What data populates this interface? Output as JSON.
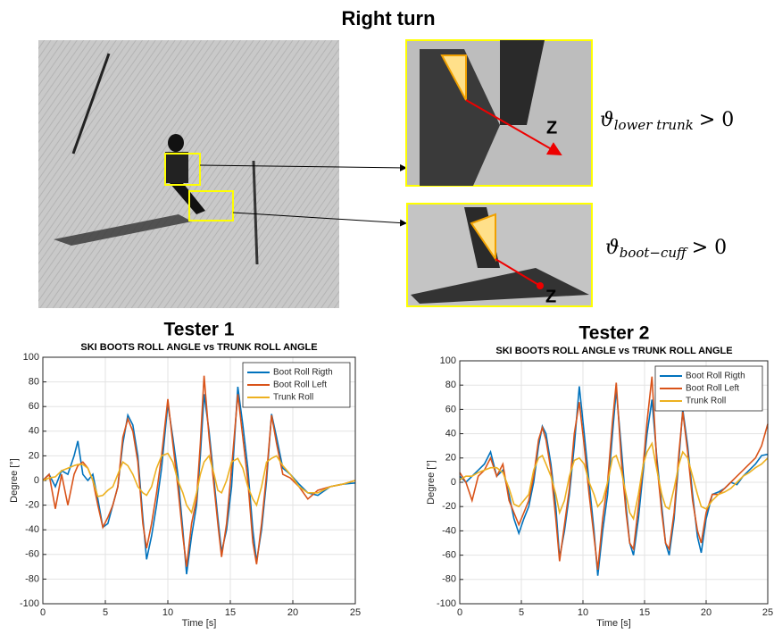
{
  "figure": {
    "title": "Right turn",
    "zoom_labels": [
      "Z",
      "Z"
    ],
    "equations": [
      {
        "symbol": "ϑ",
        "subscript": "lower trunk",
        "relation": "> 0"
      },
      {
        "symbol": "ϑ",
        "subscript": "boot−cuff",
        "relation": "> 0"
      }
    ]
  },
  "chart_data": [
    {
      "type": "line",
      "title": "Tester 1",
      "subtitle": "SKI BOOTS ROLL ANGLE vs TRUNK  ROLL ANGLE",
      "x_label": "Time [s]",
      "y_label": "Degree [°]",
      "xlim": [
        0,
        25
      ],
      "ylim": [
        -100,
        100
      ],
      "xticks": [
        0,
        5,
        10,
        15,
        20,
        25
      ],
      "yticks": [
        -100,
        -80,
        -60,
        -40,
        -20,
        0,
        20,
        40,
        60,
        80,
        100
      ],
      "grid": true,
      "legend": "upper right",
      "x": [
        0,
        0.5,
        1,
        1.5,
        2,
        2.5,
        2.8,
        3.2,
        3.6,
        4,
        4.4,
        4.8,
        5.2,
        5.6,
        6,
        6.4,
        6.8,
        7.2,
        7.6,
        8,
        8.3,
        8.7,
        9.1,
        9.5,
        10,
        10.4,
        10.8,
        11.2,
        11.5,
        11.9,
        12.3,
        12.6,
        12.9,
        13.3,
        13.7,
        14,
        14.3,
        14.7,
        15.1,
        15.6,
        16,
        16.4,
        16.8,
        17.1,
        17.5,
        17.9,
        18.3,
        18.7,
        19.2,
        19.8,
        20.5,
        21.2,
        22,
        23,
        24,
        25
      ],
      "series": [
        {
          "name": "Boot Roll Rigth",
          "color": "#0072bd",
          "values": [
            0,
            5,
            -5,
            8,
            5,
            20,
            32,
            5,
            0,
            5,
            -15,
            -38,
            -35,
            -20,
            -5,
            30,
            53,
            45,
            20,
            -30,
            -64,
            -45,
            -20,
            10,
            62,
            35,
            5,
            -40,
            -76,
            -45,
            -20,
            20,
            70,
            40,
            0,
            -30,
            -58,
            -40,
            -5,
            76,
            45,
            10,
            -40,
            -66,
            -40,
            0,
            54,
            35,
            10,
            5,
            -3,
            -10,
            -12,
            -5,
            -3,
            -2
          ]
        },
        {
          "name": "Boot Roll Left",
          "color": "#d95319",
          "values": [
            0,
            5,
            -23,
            5,
            -20,
            5,
            12,
            15,
            10,
            0,
            -20,
            -38,
            -30,
            -20,
            -5,
            35,
            50,
            40,
            15,
            -35,
            -55,
            -35,
            -10,
            20,
            66,
            30,
            -5,
            -45,
            -70,
            -35,
            -15,
            30,
            85,
            35,
            -5,
            -35,
            -62,
            -35,
            10,
            70,
            35,
            0,
            -50,
            -68,
            -35,
            5,
            53,
            30,
            5,
            2,
            -5,
            -15,
            -8,
            -5,
            -3,
            0
          ]
        },
        {
          "name": "Trunk Roll",
          "color": "#edb120",
          "values": [
            0,
            2,
            3,
            8,
            10,
            12,
            13,
            13,
            10,
            0,
            -13,
            -12,
            -8,
            -5,
            5,
            15,
            12,
            5,
            -5,
            -10,
            -12,
            -5,
            10,
            20,
            22,
            15,
            0,
            -10,
            -20,
            -26,
            -10,
            5,
            15,
            20,
            5,
            -8,
            -10,
            0,
            15,
            18,
            10,
            -5,
            -15,
            -20,
            -5,
            15,
            18,
            20,
            12,
            5,
            -5,
            -10,
            -10,
            -5,
            -3,
            0
          ]
        }
      ]
    },
    {
      "type": "line",
      "title": "Tester 2",
      "subtitle": "SKI BOOTS ROLL ANGLE vs TRUNK  ROLL ANGLE",
      "x_label": "Time [s]",
      "y_label": "Degree [°]",
      "xlim": [
        0,
        25
      ],
      "ylim": [
        -100,
        100
      ],
      "xticks": [
        0,
        5,
        10,
        15,
        20,
        25
      ],
      "yticks": [
        -100,
        -80,
        -60,
        -40,
        -20,
        0,
        20,
        40,
        60,
        80,
        100
      ],
      "grid": true,
      "legend": "upper right",
      "x": [
        0,
        0.5,
        1,
        1.5,
        2,
        2.5,
        3,
        3.5,
        4,
        4.4,
        4.8,
        5.2,
        5.6,
        6,
        6.4,
        6.7,
        7,
        7.4,
        7.8,
        8.1,
        8.5,
        8.9,
        9.3,
        9.7,
        10.1,
        10.5,
        10.9,
        11.2,
        11.6,
        12,
        12.4,
        12.7,
        13.1,
        13.5,
        13.8,
        14.1,
        14.5,
        14.9,
        15.2,
        15.6,
        16,
        16.4,
        16.7,
        17,
        17.4,
        17.8,
        18.1,
        18.5,
        18.9,
        19.3,
        19.6,
        20,
        20.5,
        21,
        21.5,
        22,
        22.5,
        23,
        23.5,
        24,
        24.5,
        25
      ],
      "series": [
        {
          "name": "Boot Roll Rigth",
          "color": "#0072bd",
          "values": [
            5,
            0,
            5,
            10,
            15,
            25,
            5,
            10,
            -10,
            -30,
            -42,
            -30,
            -20,
            0,
            30,
            46,
            40,
            15,
            -20,
            -62,
            -40,
            -10,
            30,
            79,
            40,
            0,
            -40,
            -77,
            -40,
            -10,
            40,
            76,
            30,
            -20,
            -50,
            -60,
            -30,
            10,
            40,
            68,
            20,
            -20,
            -50,
            -60,
            -30,
            20,
            60,
            30,
            -10,
            -45,
            -58,
            -30,
            -10,
            -8,
            -5,
            0,
            -2,
            5,
            10,
            15,
            22,
            23
          ]
        },
        {
          "name": "Boot Roll Left",
          "color": "#d95319",
          "values": [
            8,
            0,
            -15,
            5,
            10,
            20,
            5,
            15,
            -15,
            -25,
            -35,
            -25,
            -15,
            5,
            35,
            45,
            35,
            10,
            -30,
            -65,
            -35,
            -5,
            40,
            66,
            30,
            -10,
            -45,
            -72,
            -30,
            0,
            50,
            82,
            20,
            -25,
            -50,
            -55,
            -20,
            15,
            50,
            87,
            15,
            -25,
            -50,
            -55,
            -25,
            25,
            58,
            25,
            -15,
            -40,
            -50,
            -25,
            -10,
            -10,
            -5,
            0,
            5,
            10,
            15,
            20,
            30,
            48
          ]
        },
        {
          "name": "Trunk Roll",
          "color": "#edb120",
          "values": [
            2,
            5,
            5,
            8,
            10,
            12,
            12,
            8,
            -5,
            -18,
            -20,
            -15,
            -10,
            10,
            20,
            22,
            15,
            5,
            -10,
            -25,
            -15,
            5,
            18,
            20,
            15,
            0,
            -10,
            -20,
            -15,
            0,
            20,
            22,
            10,
            -10,
            -25,
            -30,
            -10,
            15,
            25,
            32,
            10,
            -10,
            -20,
            -22,
            -5,
            15,
            25,
            20,
            5,
            -10,
            -20,
            -22,
            -15,
            -10,
            -8,
            -5,
            0,
            5,
            8,
            12,
            15,
            20
          ]
        }
      ]
    }
  ]
}
